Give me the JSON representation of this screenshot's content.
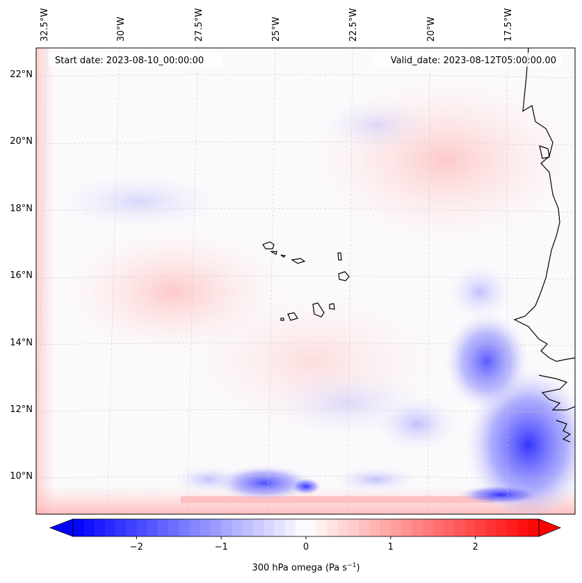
{
  "header": {
    "start_date": "Start date: 2023-08-10_00:00:00",
    "valid_date": "Valid_date: 2023-08-12T05:00:00.00"
  },
  "axes": {
    "lon_labels": [
      "32.5°W",
      "30°W",
      "27.5°W",
      "25°W",
      "22.5°W",
      "20°W",
      "17.5°W"
    ],
    "lat_labels": [
      "22°N",
      "20°N",
      "18°N",
      "16°N",
      "14°N",
      "12°N",
      "10°N"
    ]
  },
  "colorbar": {
    "ticks": [
      "−2",
      "−1",
      "0",
      "1",
      "2"
    ],
    "label": "300 hPa omega (Pa s",
    "label_sup": "−1",
    "label_end": ")",
    "vmin": -2.75,
    "vmax": 2.75,
    "tick_values": [
      -2,
      -1,
      0,
      1,
      2
    ]
  },
  "colors": {
    "negative": "#0000ff",
    "neutral": "#ffffff",
    "positive": "#ff0000",
    "coastline": "#000000",
    "grid": "#c8c8c8"
  }
}
